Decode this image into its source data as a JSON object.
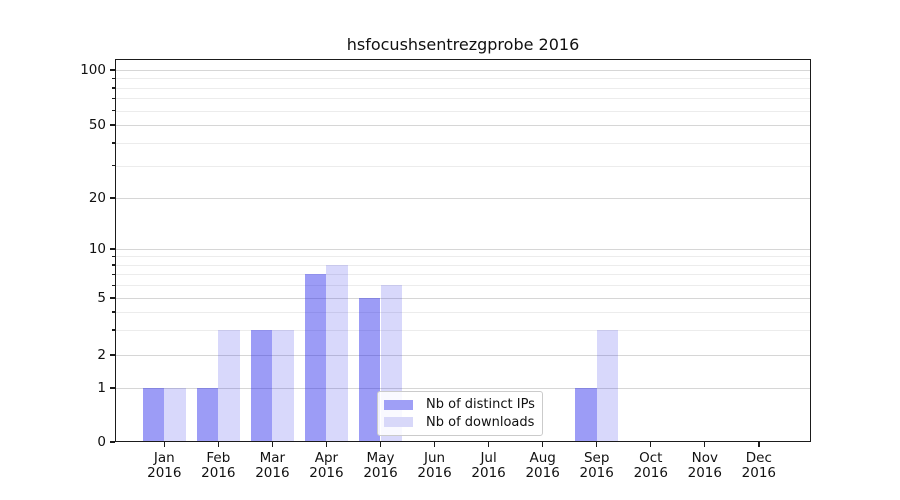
{
  "chart_data": {
    "type": "bar",
    "title": "hsfocushsentrezgprobe 2016",
    "xlabel": "",
    "ylabel": "",
    "categories": [
      "Jan",
      "Feb",
      "Mar",
      "Apr",
      "May",
      "Jun",
      "Jul",
      "Aug",
      "Sep",
      "Oct",
      "Nov",
      "Dec"
    ],
    "category_year": "2016",
    "series": [
      {
        "name": "Nb of distinct IPs",
        "values": [
          1,
          1,
          3,
          7,
          5,
          0,
          0,
          0,
          1,
          0,
          0,
          0
        ],
        "fill_color": "rgba(35,35,235,0.45)",
        "legend_color": "#9f9ff6"
      },
      {
        "name": "Nb of downloads",
        "values": [
          1,
          3,
          3,
          8,
          6,
          0,
          0,
          0,
          3,
          0,
          0,
          0
        ],
        "fill_color": "rgba(35,35,235,0.175)",
        "legend_color": "#d8d8f9"
      }
    ],
    "y_axis": {
      "scale": "log-like with linear 0-1 segment",
      "range": [
        0,
        100
      ],
      "major_ticks": [
        0,
        1,
        2,
        5,
        10,
        20,
        50,
        100
      ],
      "minor_gridlines": [
        3,
        4,
        6,
        7,
        8,
        9,
        30,
        40,
        60,
        70,
        80,
        90
      ]
    },
    "grid": "on (horizontal major + minor)",
    "legend_position": "lower center (inside plot)"
  },
  "colors": {
    "background": "#ffffff",
    "axis_spine": "#1b1b1b",
    "grid_major": "#d6d6d6",
    "grid_minor": "#ececec",
    "text": "#111111",
    "legend_border": "#cbcbcb"
  }
}
